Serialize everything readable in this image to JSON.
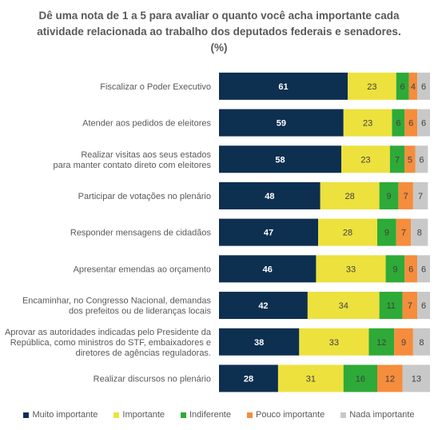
{
  "chart_data": {
    "type": "bar",
    "orientation": "horizontal",
    "stacked": true,
    "title_lines": [
      "Dê uma nota de 1 a 5 para avaliar o quanto você acha importante cada",
      "atividade relacionada ao trabalho dos deputados federais e senadores.",
      "(%)"
    ],
    "categories": [
      [
        "Fiscalizar o Poder Executivo"
      ],
      [
        "Atender aos pedidos de eleitores"
      ],
      [
        "Realizar visitas aos seus estados",
        "para manter contato direto com eleitores"
      ],
      [
        "Participar de votações no plenário"
      ],
      [
        "Responder mensagens de cidadãos"
      ],
      [
        "Apresentar emendas ao orçamento"
      ],
      [
        "Encaminhar, no Congresso Nacional, demandas",
        "dos prefeitos ou de lideranças locais"
      ],
      [
        "Aprovar as autoridades indicadas pelo Presidente da",
        "República, como ministros do STF, embaixadores e",
        "diretores de agências reguladoras."
      ],
      [
        "Realizar discursos no plenário"
      ]
    ],
    "series": [
      {
        "name": "Muito importante",
        "color": "#0d2f50",
        "label_color": "#ffffff",
        "values": [
          61,
          59,
          58,
          48,
          47,
          46,
          42,
          38,
          28
        ]
      },
      {
        "name": "Importante",
        "color": "#ede13e",
        "label_color": "#404040",
        "values": [
          23,
          23,
          23,
          28,
          28,
          33,
          34,
          33,
          31
        ]
      },
      {
        "name": "Indiferente",
        "color": "#2eaa38",
        "label_color": "#404040",
        "values": [
          6,
          6,
          7,
          9,
          9,
          9,
          11,
          12,
          16
        ]
      },
      {
        "name": "Pouco importante",
        "color": "#f58d3c",
        "label_color": "#404040",
        "values": [
          4,
          6,
          5,
          7,
          7,
          6,
          7,
          9,
          12
        ]
      },
      {
        "name": "Nada importante",
        "color": "#c8c8c8",
        "label_color": "#404040",
        "values": [
          6,
          6,
          6,
          7,
          8,
          6,
          6,
          8,
          13
        ]
      }
    ],
    "xlim": [
      0,
      100
    ],
    "grid": false,
    "legend_position": "bottom"
  }
}
